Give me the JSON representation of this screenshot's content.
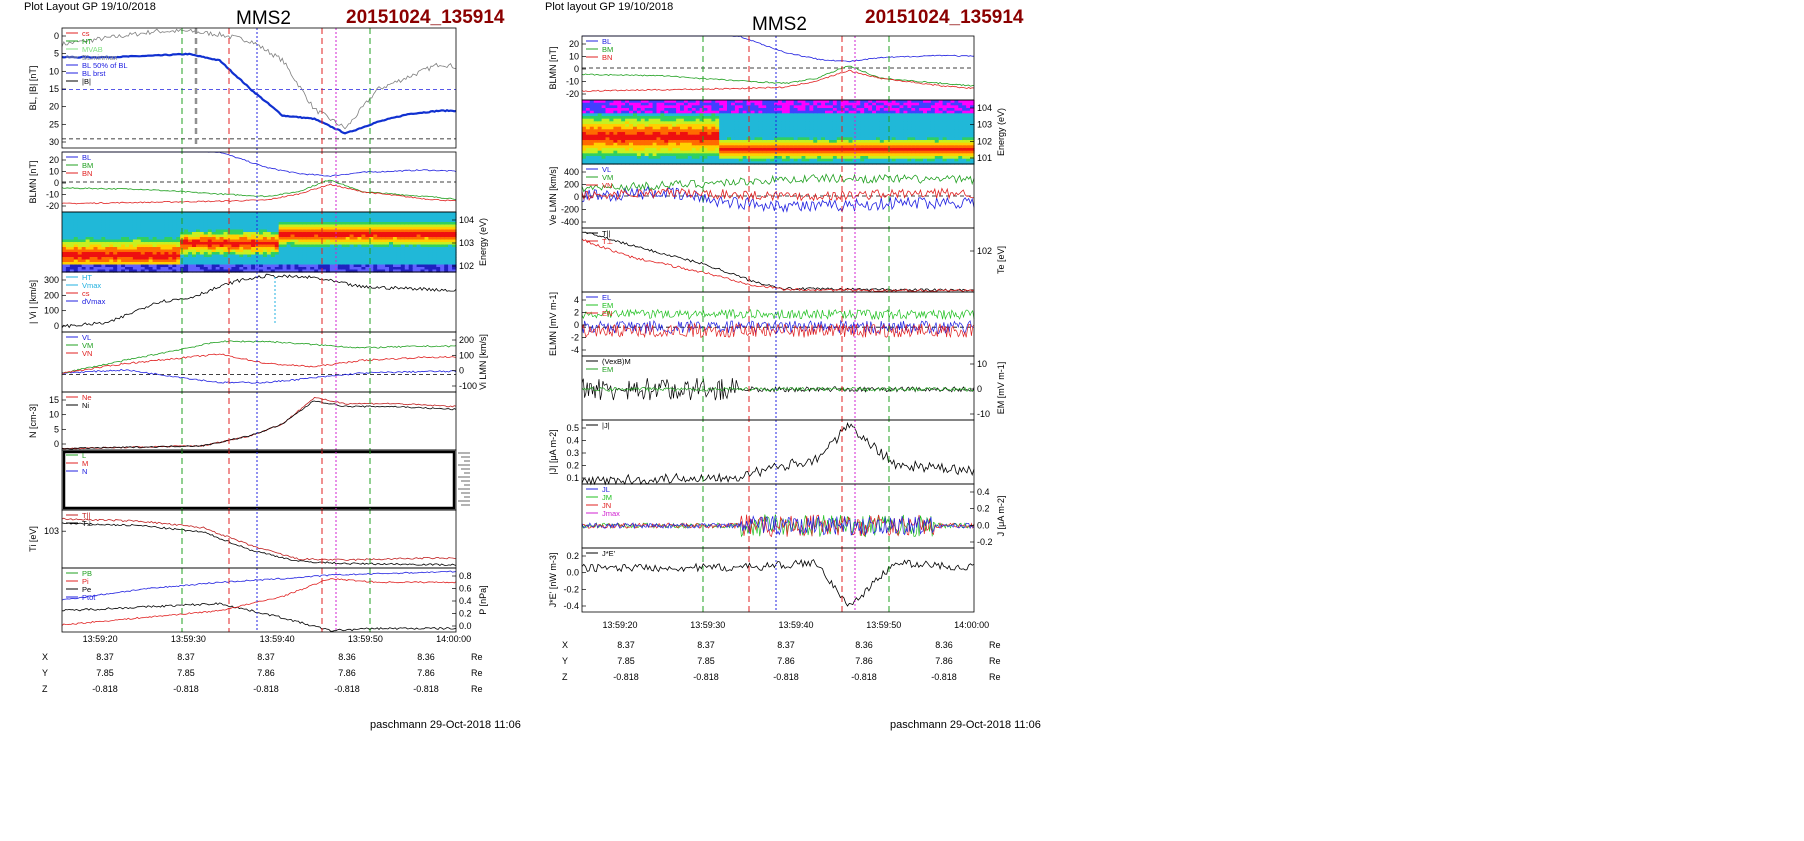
{
  "left": {
    "header": "Plot Layout GP 19/10/2018",
    "spacecraft": "MMS2",
    "event": "20151024_135914",
    "footer": "paschmann 29-Oct-2018 11:06",
    "time_ticks": [
      "13:59:20",
      "13:59:30",
      "13:59:40",
      "13:59:50",
      "14:00:00"
    ],
    "ephem": [
      {
        "label": "X",
        "values": [
          "8.37",
          "8.37",
          "8.37",
          "8.36",
          "8.36"
        ],
        "unit": "Re"
      },
      {
        "label": "Y",
        "values": [
          "7.85",
          "7.85",
          "7.86",
          "7.86",
          "7.86"
        ],
        "unit": "Re"
      },
      {
        "label": "Z",
        "values": [
          "-0.818",
          "-0.818",
          "-0.818",
          "-0.818",
          "-0.818"
        ],
        "unit": "Re"
      }
    ],
    "panels": [
      {
        "ylabel": "BL, |B| [nT]",
        "ticks": [
          "0",
          "5",
          "10",
          "15",
          "20",
          "25",
          "30"
        ],
        "legend": [
          "cs",
          "HT",
          "MVAB",
          "BLminmax",
          "BL 50% of BL",
          "BL brst",
          "|B|"
        ]
      },
      {
        "ylabel": "BLMN [nT]",
        "ticks": [
          "20",
          "10",
          "0",
          "-10",
          "-20"
        ],
        "legend": [
          "BL",
          "BM",
          "BN"
        ]
      },
      {
        "ylabel": "Energy (eV)",
        "ticks": [
          "10^4",
          "10^3",
          "10^2"
        ],
        "legend": []
      },
      {
        "ylabel": "| Vi | [km/s]",
        "ticks": [
          "300",
          "200",
          "100",
          "0"
        ],
        "legend": [
          "HT",
          "Vmax",
          "cs",
          "dVmax"
        ]
      },
      {
        "ylabel": "Vi LMN [km/s]",
        "ticks": [
          "200",
          "100",
          "0",
          "-100"
        ],
        "legend": [
          "VL",
          "VM",
          "VN"
        ]
      },
      {
        "ylabel": "N [cm-3]",
        "ticks": [
          "15",
          "10",
          "5",
          "0"
        ],
        "legend": [
          "Ne",
          "Ni"
        ]
      },
      {
        "ylabel": "",
        "ticks": [],
        "legend": [
          "L",
          "M",
          "N"
        ]
      },
      {
        "ylabel": "Ti [eV]",
        "ticks": [
          "10^3"
        ],
        "legend": [
          "T||",
          "T⊥"
        ]
      },
      {
        "ylabel": "P [nPa]",
        "ticks": [
          "0.8",
          "0.6",
          "0.4",
          "0.2",
          "0.0"
        ],
        "legend": [
          "PB",
          "Pi",
          "Pe",
          "Ptot"
        ]
      }
    ]
  },
  "right": {
    "header": "Plot layout GP 19/10/2018",
    "spacecraft": "MMS2",
    "event": "20151024_135914",
    "footer": "paschmann 29-Oct-2018 11:06",
    "time_ticks": [
      "13:59:20",
      "13:59:30",
      "13:59:40",
      "13:59:50",
      "14:00:00"
    ],
    "ephem": [
      {
        "label": "X",
        "values": [
          "8.37",
          "8.37",
          "8.37",
          "8.36",
          "8.36"
        ],
        "unit": "Re"
      },
      {
        "label": "Y",
        "values": [
          "7.85",
          "7.85",
          "7.86",
          "7.86",
          "7.86"
        ],
        "unit": "Re"
      },
      {
        "label": "Z",
        "values": [
          "-0.818",
          "-0.818",
          "-0.818",
          "-0.818",
          "-0.818"
        ],
        "unit": "Re"
      }
    ],
    "panels": [
      {
        "ylabel": "BLMN [nT]",
        "ticks": [
          "20",
          "10",
          "0",
          "-10",
          "-20"
        ],
        "legend": [
          "BL",
          "BM",
          "BN"
        ]
      },
      {
        "ylabel": "Energy (eV)",
        "ticks": [
          "10^4",
          "10^3",
          "10^2",
          "10^1"
        ],
        "legend": []
      },
      {
        "ylabel": "Ve LMN [km/s]",
        "ticks": [
          "400",
          "200",
          "0",
          "-200",
          "-400"
        ],
        "legend": [
          "VL",
          "VM",
          "VN"
        ]
      },
      {
        "ylabel": "Te [eV]",
        "ticks": [
          "10^2"
        ],
        "legend": [
          "T||",
          "T⊥"
        ]
      },
      {
        "ylabel": "ELMN [mV m-1]",
        "ticks": [
          "4",
          "2",
          "0",
          "-2",
          "-4"
        ],
        "legend": [
          "EL",
          "EM",
          "EN"
        ]
      },
      {
        "ylabel": "EM [mV m-1]",
        "ticks": [
          "10",
          "0",
          "-10"
        ],
        "legend": [
          "(VexB)M",
          "EM"
        ]
      },
      {
        "ylabel": "|J| [μA m-2]",
        "ticks": [
          "0.5",
          "0.4",
          "0.3",
          "0.2",
          "0.1"
        ],
        "legend": [
          "|J|"
        ]
      },
      {
        "ylabel": "J [μA m-2]",
        "ticks": [
          "0.4",
          "0.2",
          "0.0",
          "-0.2"
        ],
        "legend": [
          "JL",
          "JM",
          "JN",
          "Jmax"
        ]
      },
      {
        "ylabel": "J*E' [nW m-3]",
        "ticks": [
          "0.2",
          "0.0",
          "-0.2",
          "-0.4"
        ],
        "legend": [
          "J*E'"
        ]
      }
    ]
  },
  "chart_data": [
    {
      "type": "line",
      "title": "BL, |B|",
      "xlabel": "",
      "ylabel": "BL, |B| [nT]",
      "ylim": [
        -2,
        35
      ],
      "x": [
        "13:59:14",
        "13:59:20",
        "13:59:26",
        "13:59:30",
        "13:59:34",
        "13:59:38",
        "13:59:42",
        "13:59:46",
        "13:59:50",
        "13:59:54",
        "13:59:58",
        "14:00:02",
        "14:00:04"
      ],
      "series": [
        {
          "name": "BL brst",
          "values": [
            26,
            26,
            26.5,
            27,
            25,
            16,
            8,
            7,
            2.5,
            6,
            8.5,
            9.5,
            9.5
          ]
        },
        {
          "name": "|B|",
          "values": [
            30,
            32,
            34,
            34,
            33,
            31,
            25,
            10,
            4,
            16,
            20,
            24,
            23
          ]
        }
      ]
    },
    {
      "type": "line",
      "title": "BLMN",
      "xlabel": "",
      "ylabel": "BLMN [nT]",
      "ylim": [
        -25,
        25
      ],
      "x": [
        "13:59:14",
        "13:59:24",
        "13:59:34",
        "13:59:40",
        "13:59:44",
        "13:59:48",
        "13:59:52",
        "14:00:00",
        "14:00:04"
      ],
      "series": [
        {
          "name": "BL",
          "values": [
            26,
            27,
            25,
            12,
            7,
            5,
            8,
            10,
            9
          ]
        },
        {
          "name": "BM",
          "values": [
            -5,
            -6,
            -10,
            -12,
            -8,
            2,
            -8,
            -12,
            -14
          ]
        },
        {
          "name": "BN",
          "values": [
            -18,
            -17,
            -16,
            -15,
            -10,
            -2,
            -8,
            -14,
            -16
          ]
        }
      ]
    },
    {
      "type": "line",
      "title": "|Vi|",
      "xlabel": "",
      "ylabel": "| Vi | [km/s]",
      "ylim": [
        0,
        320
      ],
      "x": [
        "13:59:14",
        "13:59:20",
        "13:59:26",
        "13:59:30",
        "13:59:36",
        "13:59:40",
        "13:59:46",
        "13:59:52",
        "14:00:00",
        "14:00:04"
      ],
      "series": [
        {
          "name": "",
          "values": [
            30,
            50,
            160,
            180,
            270,
            300,
            290,
            240,
            230,
            220
          ]
        }
      ]
    },
    {
      "type": "line",
      "title": "Vi LMN",
      "xlabel": "",
      "ylabel": "Vi LMN [km/s]",
      "ylim": [
        -120,
        260
      ],
      "x": [
        "13:59:14",
        "13:59:22",
        "13:59:28",
        "13:59:34",
        "13:59:40",
        "13:59:46",
        "13:59:52",
        "14:00:00",
        "14:00:04"
      ],
      "series": [
        {
          "name": "VL",
          "values": [
            0,
            20,
            -20,
            -60,
            -60,
            -30,
            0,
            10,
            10
          ]
        },
        {
          "name": "VM",
          "values": [
            0,
            80,
            140,
            200,
            200,
            180,
            160,
            170,
            170
          ]
        },
        {
          "name": "VN",
          "values": [
            0,
            60,
            90,
            120,
            60,
            40,
            80,
            100,
            100
          ]
        }
      ]
    },
    {
      "type": "line",
      "title": "N",
      "xlabel": "",
      "ylabel": "N [cm-3]",
      "ylim": [
        0,
        20
      ],
      "x": [
        "13:59:14",
        "13:59:24",
        "13:59:32",
        "13:59:38",
        "13:59:42",
        "13:59:46",
        "13:59:50",
        "13:59:56",
        "14:00:04"
      ],
      "series": [
        {
          "name": "Ne",
          "values": [
            0.5,
            1,
            1.5,
            5,
            9,
            18,
            16,
            16,
            15
          ]
        },
        {
          "name": "Ni",
          "values": [
            0.5,
            1,
            1.5,
            5,
            9,
            17,
            15,
            15,
            14
          ]
        }
      ]
    },
    {
      "type": "line",
      "title": "Ti",
      "xlabel": "",
      "ylabel": "Ti [eV]",
      "ylim": [
        200,
        1500
      ],
      "x": [
        "13:59:14",
        "13:59:24",
        "13:59:32",
        "13:59:38",
        "13:59:44",
        "13:59:50",
        "14:00:00",
        "14:00:04"
      ],
      "series": [
        {
          "name": "T||",
          "values": [
            1300,
            1250,
            1100,
            700,
            400,
            380,
            420,
            420
          ]
        },
        {
          "name": "T⊥",
          "values": [
            1200,
            1150,
            1000,
            600,
            350,
            300,
            280,
            270
          ]
        }
      ]
    },
    {
      "type": "line",
      "title": "P",
      "xlabel": "",
      "ylabel": "P [nPa]",
      "ylim": [
        0,
        0.9
      ],
      "x": [
        "13:59:14",
        "13:59:24",
        "13:59:34",
        "13:59:42",
        "13:59:48",
        "13:59:54",
        "14:00:04"
      ],
      "series": [
        {
          "name": "PB",
          "values": [
            0.3,
            0.35,
            0.4,
            0.2,
            0.02,
            0.05,
            0.05
          ]
        },
        {
          "name": "Ptot",
          "values": [
            0.45,
            0.6,
            0.7,
            0.75,
            0.8,
            0.82,
            0.85
          ]
        },
        {
          "name": "Pi",
          "values": [
            0.1,
            0.2,
            0.3,
            0.5,
            0.75,
            0.7,
            0.7
          ]
        }
      ]
    },
    {
      "type": "line",
      "title": "Ve LMN",
      "xlabel": "",
      "ylabel": "Ve LMN [km/s]",
      "ylim": [
        -450,
        450
      ],
      "x": [
        "13:59:14",
        "13:59:24",
        "13:59:34",
        "13:59:44",
        "13:59:54",
        "14:00:04"
      ],
      "series": [
        {
          "name": "VL",
          "values": [
            0,
            50,
            -100,
            -150,
            -100,
            -80
          ]
        },
        {
          "name": "VM",
          "values": [
            100,
            150,
            200,
            250,
            240,
            230
          ]
        },
        {
          "name": "VN",
          "values": [
            0,
            50,
            20,
            0,
            30,
            40
          ]
        }
      ]
    },
    {
      "type": "line",
      "title": "Te",
      "xlabel": "",
      "ylabel": "Te [eV]",
      "ylim": [
        20,
        400
      ],
      "x": [
        "13:59:14",
        "13:59:20",
        "13:59:30",
        "13:59:36",
        "13:59:40",
        "13:59:50",
        "14:00:04"
      ],
      "series": [
        {
          "name": "T||",
          "values": [
            380,
            300,
            180,
            80,
            40,
            35,
            30
          ]
        },
        {
          "name": "T⊥",
          "values": [
            330,
            230,
            130,
            60,
            35,
            30,
            28
          ]
        }
      ]
    },
    {
      "type": "line",
      "title": "|J|",
      "xlabel": "",
      "ylabel": "|J| [μA m-2]",
      "ylim": [
        0,
        0.5
      ],
      "x": [
        "13:59:14",
        "13:59:24",
        "13:59:34",
        "13:59:44",
        "13:59:48",
        "13:59:54",
        "14:00:04"
      ],
      "series": [
        {
          "name": "|J|",
          "values": [
            0.02,
            0.04,
            0.06,
            0.2,
            0.45,
            0.15,
            0.1
          ]
        }
      ]
    },
    {
      "type": "line",
      "title": "J*E'",
      "xlabel": "",
      "ylabel": "J*E' [nW m-3]",
      "ylim": [
        -0.45,
        0.2
      ],
      "x": [
        "13:59:14",
        "13:59:24",
        "13:59:34",
        "13:59:44",
        "13:59:48",
        "13:59:54",
        "14:00:04"
      ],
      "series": [
        {
          "name": "J*E'",
          "values": [
            0,
            0,
            0,
            0.05,
            -0.4,
            0.05,
            0
          ]
        }
      ]
    }
  ]
}
